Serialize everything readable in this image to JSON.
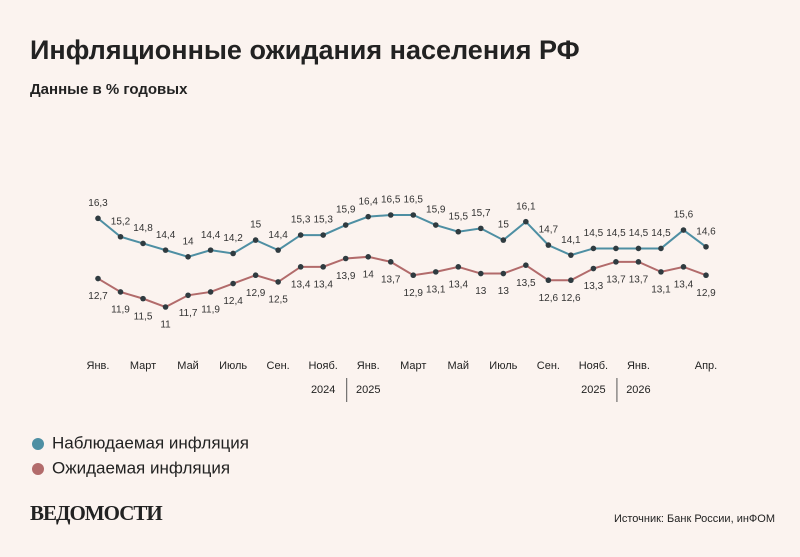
{
  "chart_data": {
    "type": "line",
    "title": "Инфляционные ожидания населения РФ",
    "subtitle": "Данные в % годовых",
    "categories": [
      "Янв.",
      null,
      "Март",
      null,
      "Май",
      null,
      "Июль",
      null,
      "Сен.",
      null,
      "Нояб.",
      null,
      "Янв.",
      null,
      "Март",
      null,
      "Май",
      null,
      "Июль",
      null,
      "Сен.",
      null,
      "Нояб.",
      null,
      "Янв.",
      null,
      null,
      "Апр."
    ],
    "year_categories": [
      null,
      null,
      null,
      null,
      null,
      null,
      null,
      null,
      null,
      null,
      "2024",
      null,
      "2025",
      null,
      null,
      null,
      null,
      null,
      null,
      null,
      null,
      null,
      "2025",
      null,
      "2026",
      null,
      null,
      null
    ],
    "series": [
      {
        "name": "Наблюдаемая инфляция",
        "color": "#4e8fa3",
        "values": [
          16.3,
          15.2,
          14.8,
          14.4,
          14,
          14.4,
          14.2,
          15,
          14.4,
          15.3,
          15.3,
          15.9,
          16.4,
          16.5,
          16.5,
          15.9,
          15.5,
          15.7,
          15,
          16.1,
          14.7,
          14.1,
          14.5,
          14.5,
          14.5,
          14.5,
          15.6,
          14.6
        ],
        "value_labels": [
          "16,3",
          "15,2",
          "14,8",
          "14,4",
          "14",
          "14,4",
          "14,2",
          "15",
          "14,4",
          "15,3",
          "15,3",
          "15,9",
          "16,4",
          "16,5",
          "16,5",
          "15,9",
          "15,5",
          "15,7",
          "15",
          "16,1",
          "14,7",
          "14,1",
          "14,5",
          "14,5",
          "14,5",
          "14,5",
          "15,6",
          "14,6"
        ]
      },
      {
        "name": "Ожидаемая инфляция",
        "color": "#b26b6b",
        "values": [
          12.7,
          11.9,
          11.5,
          11,
          11.7,
          11.9,
          12.4,
          12.9,
          12.5,
          13.4,
          13.4,
          13.9,
          14,
          13.7,
          12.9,
          13.1,
          13.4,
          13,
          13,
          13.5,
          12.6,
          12.6,
          13.3,
          13.7,
          13.7,
          13.1,
          13.4,
          12.9
        ],
        "value_labels": [
          "12,7",
          "11,9",
          "11,5",
          "11",
          "11,7",
          "11,9",
          "12,4",
          "12,9",
          "12,5",
          "13,4",
          "13,4",
          "13,9",
          "14",
          "13,7",
          "12,9",
          "13,1",
          "13,4",
          "13",
          "13",
          "13,5",
          "12,6",
          "12,6",
          "13,3",
          "13,7",
          "13,7",
          "13,1",
          "13,4",
          "12,9"
        ]
      }
    ],
    "source": "Источник: Банк России, инФОМ",
    "logo": "ВЕДОМОСТИ"
  }
}
